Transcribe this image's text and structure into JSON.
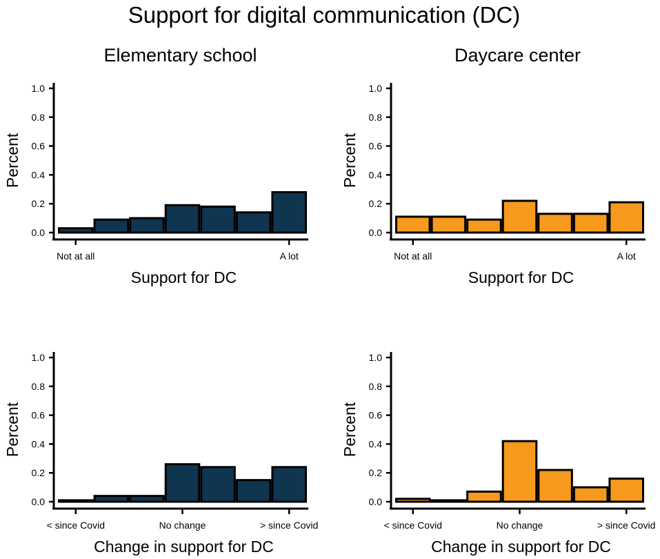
{
  "figure_title": "Support for digital communication (DC)",
  "colors": {
    "elementary": "#0f3550",
    "daycare": "#f7991c",
    "outline": "#000000"
  },
  "chart_data": [
    {
      "type": "bar",
      "title": "Elementary school",
      "ylabel": "Percent",
      "xlabel": "Support for DC",
      "ylim": [
        0,
        1
      ],
      "yticks": [
        "0.0",
        "0.2",
        "0.4",
        "0.6",
        "0.8",
        "1.0"
      ],
      "categories": [
        "1",
        "2",
        "3",
        "4",
        "5",
        "6",
        "7"
      ],
      "xtick_labels": [
        {
          "index": 0,
          "label": "Not at all"
        },
        {
          "index": 6,
          "label": "A lot"
        }
      ],
      "values": [
        0.03,
        0.09,
        0.1,
        0.19,
        0.18,
        0.14,
        0.28
      ],
      "color": "#0f3550"
    },
    {
      "type": "bar",
      "title": "Daycare center",
      "ylabel": "Percent",
      "xlabel": "Support for DC",
      "ylim": [
        0,
        1
      ],
      "yticks": [
        "0.0",
        "0.2",
        "0.4",
        "0.6",
        "0.8",
        "1.0"
      ],
      "categories": [
        "1",
        "2",
        "3",
        "4",
        "5",
        "6",
        "7"
      ],
      "xtick_labels": [
        {
          "index": 0,
          "label": "Not at all"
        },
        {
          "index": 6,
          "label": "A lot"
        }
      ],
      "values": [
        0.11,
        0.11,
        0.09,
        0.22,
        0.13,
        0.13,
        0.21
      ],
      "color": "#f7991c"
    },
    {
      "type": "bar",
      "title": "",
      "ylabel": "Percent",
      "xlabel": "Change in support for DC",
      "ylim": [
        0,
        1
      ],
      "yticks": [
        "0.0",
        "0.2",
        "0.4",
        "0.6",
        "0.8",
        "1.0"
      ],
      "categories": [
        "1",
        "2",
        "3",
        "4",
        "5",
        "6",
        "7"
      ],
      "xtick_labels": [
        {
          "index": 0,
          "label": "< since Covid"
        },
        {
          "index": 3,
          "label": "No change"
        },
        {
          "index": 6,
          "label": "> since Covid"
        }
      ],
      "values": [
        0.01,
        0.04,
        0.04,
        0.26,
        0.24,
        0.15,
        0.24
      ],
      "color": "#0f3550"
    },
    {
      "type": "bar",
      "title": "",
      "ylabel": "Percent",
      "xlabel": "Change in support for DC",
      "ylim": [
        0,
        1
      ],
      "yticks": [
        "0.0",
        "0.2",
        "0.4",
        "0.6",
        "0.8",
        "1.0"
      ],
      "categories": [
        "1",
        "2",
        "3",
        "4",
        "5",
        "6",
        "7"
      ],
      "xtick_labels": [
        {
          "index": 0,
          "label": "< since Covid"
        },
        {
          "index": 3,
          "label": "No change"
        },
        {
          "index": 6,
          "label": "> since Covid"
        }
      ],
      "values": [
        0.02,
        0.01,
        0.07,
        0.42,
        0.22,
        0.1,
        0.16
      ],
      "color": "#f7991c"
    }
  ]
}
